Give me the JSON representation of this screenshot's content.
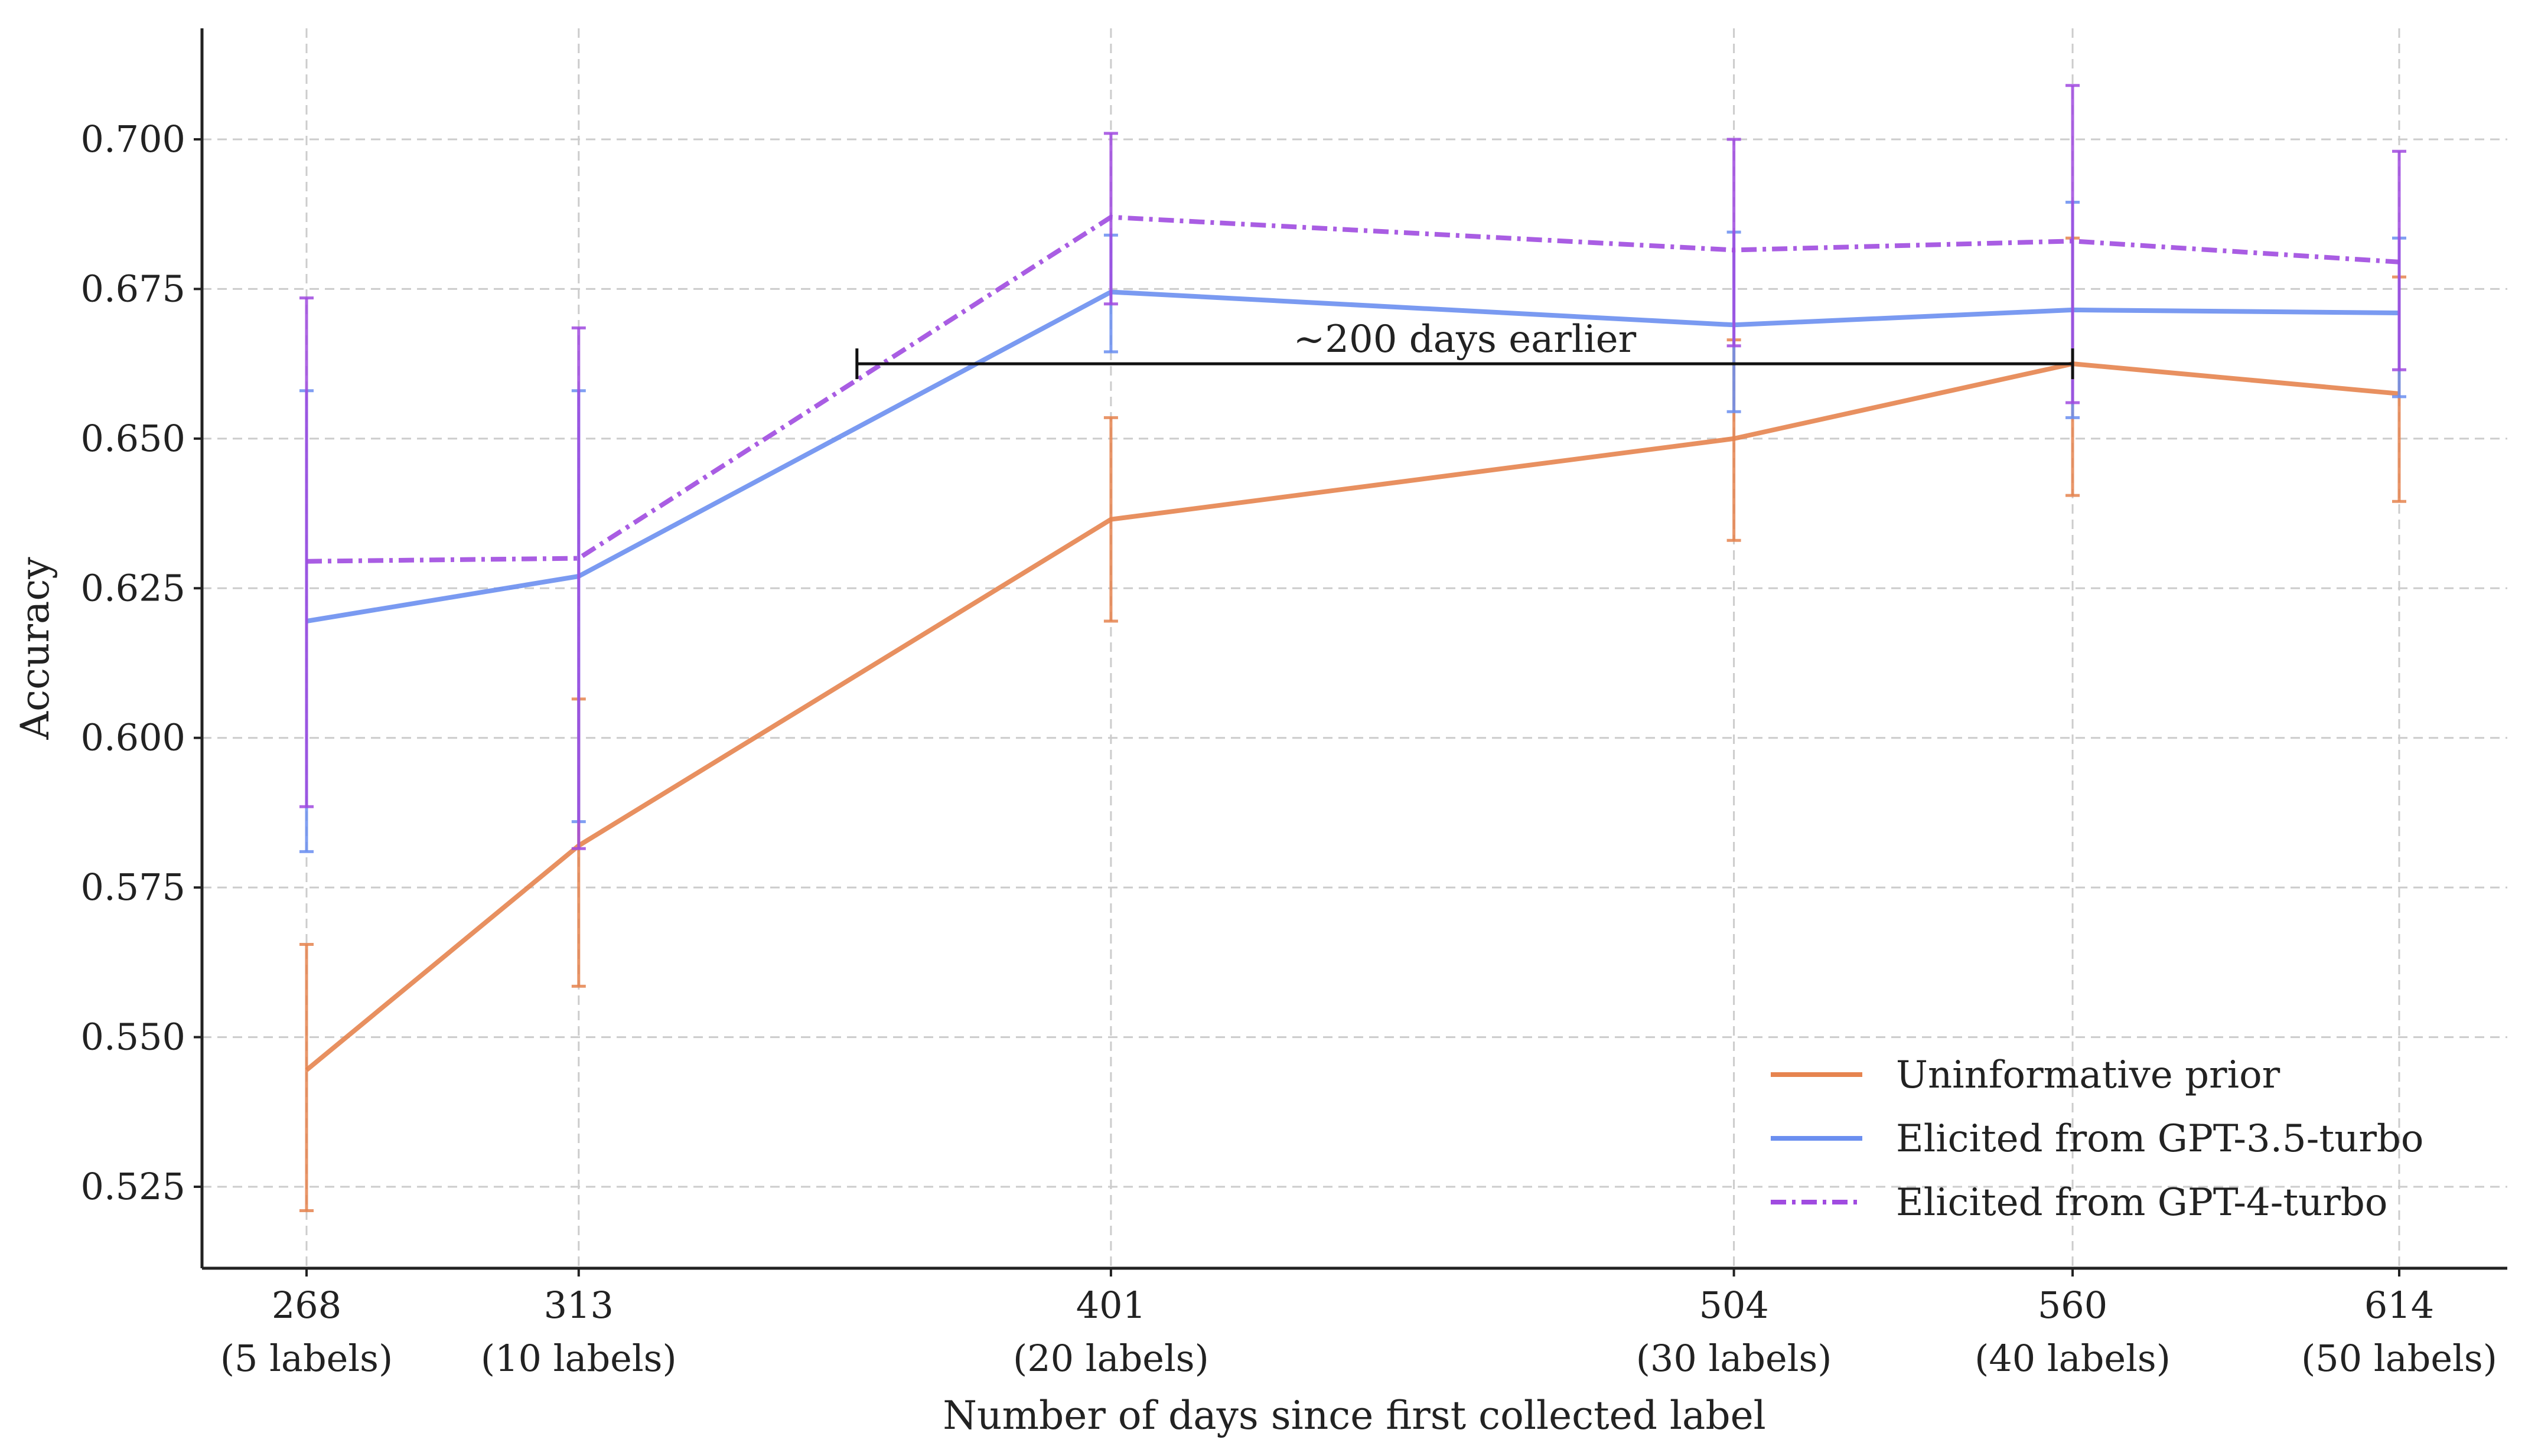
{
  "chart_data": {
    "type": "line",
    "xlabel": "Number of days since first collected label",
    "ylabel": "Accuracy",
    "xlim": [
      244,
      644
    ],
    "ylim": [
      0.512,
      0.72
    ],
    "grid": true,
    "legend_position": "bottom-right",
    "x": [
      268,
      313,
      401,
      504,
      560,
      614
    ],
    "x_tick_labels": [
      {
        "value": 268,
        "line1": "268",
        "line2": "(5 labels)"
      },
      {
        "value": 313,
        "line1": "313",
        "line2": "(10 labels)"
      },
      {
        "value": 401,
        "line1": "401",
        "line2": "(20 labels)"
      },
      {
        "value": 504,
        "line1": "504",
        "line2": "(30 labels)"
      },
      {
        "value": 560,
        "line1": "560",
        "line2": "(40 labels)"
      },
      {
        "value": 614,
        "line1": "614",
        "line2": "(50 labels)"
      }
    ],
    "y_ticks": [
      0.525,
      0.55,
      0.575,
      0.6,
      0.625,
      0.65,
      0.675,
      0.7
    ],
    "y_tick_labels": [
      "0.525",
      "0.550",
      "0.575",
      "0.600",
      "0.625",
      "0.650",
      "0.675",
      "0.700"
    ],
    "series": [
      {
        "name": "Uninformative prior",
        "color": "#e6844f",
        "dash": "solid",
        "values": [
          0.5445,
          0.582,
          0.6365,
          0.65,
          0.6625,
          0.6575
        ],
        "err_low": [
          0.521,
          0.5585,
          0.6195,
          0.633,
          0.6405,
          0.6395
        ],
        "err_high": [
          0.5655,
          0.6065,
          0.6535,
          0.6665,
          0.6835,
          0.677
        ]
      },
      {
        "name": "Elicited from GPT-3.5-turbo",
        "color": "#6b8ff0",
        "dash": "solid",
        "values": [
          0.6195,
          0.627,
          0.6745,
          0.669,
          0.6715,
          0.671
        ],
        "err_low": [
          0.581,
          0.586,
          0.6645,
          0.6545,
          0.6535,
          0.657
        ],
        "err_high": [
          0.658,
          0.658,
          0.684,
          0.6845,
          0.6895,
          0.6835
        ]
      },
      {
        "name": "Elicited from GPT-4-turbo",
        "color": "#a04be0",
        "dash": "dashdot",
        "values": [
          0.6295,
          0.63,
          0.687,
          0.6815,
          0.683,
          0.6795
        ],
        "err_low": [
          0.5885,
          0.5815,
          0.6725,
          0.6655,
          0.656,
          0.6615
        ],
        "err_high": [
          0.6735,
          0.6685,
          0.701,
          0.7,
          0.709,
          0.698
        ]
      }
    ],
    "annotation": {
      "text": "~200 days earlier",
      "x_start": 359,
      "x_end": 560,
      "y": 0.6625
    }
  }
}
